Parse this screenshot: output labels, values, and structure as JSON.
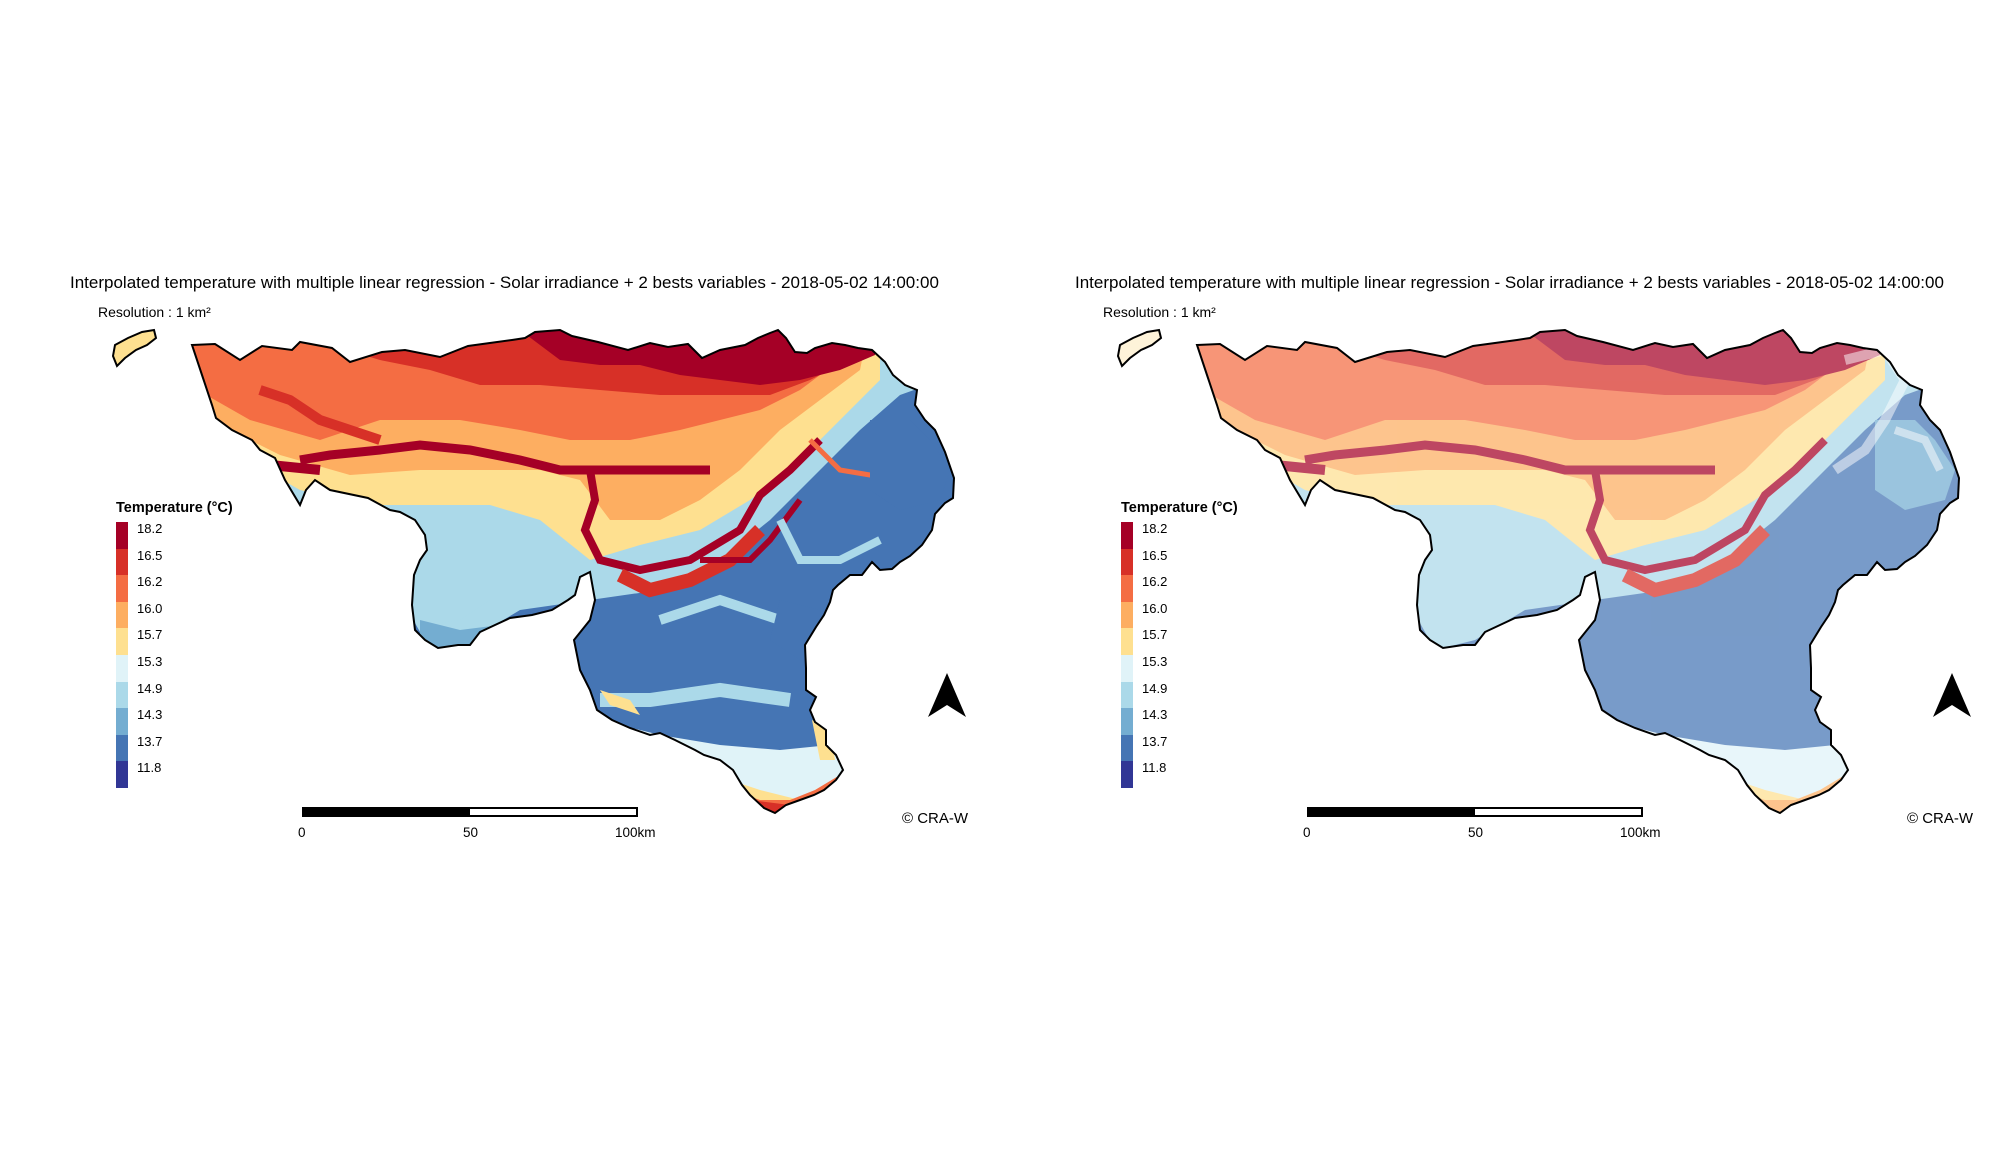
{
  "maps": [
    {
      "title": "Interpolated temperature with multiple linear regression - Solar irradiance + 2 bests variables - 2018-05-02 14:00:00",
      "resolution": "Resolution : 1 km²",
      "style": "flat",
      "legend": {
        "title": "Temperature (°C)",
        "items": [
          {
            "label": "18.2",
            "color": "#a50026"
          },
          {
            "label": "16.5",
            "color": "#d73027"
          },
          {
            "label": "16.2",
            "color": "#f46d43"
          },
          {
            "label": "16.0",
            "color": "#fdae61"
          },
          {
            "label": "15.7",
            "color": "#fee090"
          },
          {
            "label": "15.3",
            "color": "#e0f3f8"
          },
          {
            "label": "14.9",
            "color": "#abd9e9"
          },
          {
            "label": "14.3",
            "color": "#74add1"
          },
          {
            "label": "13.7",
            "color": "#4575b4"
          },
          {
            "label": "11.8",
            "color": "#313695"
          }
        ]
      },
      "scale": {
        "labels": [
          "0",
          "50",
          "100km"
        ]
      },
      "copyright": "© CRA-W"
    },
    {
      "title": "Interpolated temperature with multiple linear regression - Solar irradiance + 2 bests variables - 2018-05-02 14:00:00",
      "resolution": "Resolution : 1 km²",
      "style": "hillshade",
      "legend": {
        "title": "Temperature (°C)",
        "items": [
          {
            "label": "18.2",
            "color": "#a50026"
          },
          {
            "label": "16.5",
            "color": "#d73027"
          },
          {
            "label": "16.2",
            "color": "#f46d43"
          },
          {
            "label": "16.0",
            "color": "#fdae61"
          },
          {
            "label": "15.7",
            "color": "#fee090"
          },
          {
            "label": "15.3",
            "color": "#e0f3f8"
          },
          {
            "label": "14.9",
            "color": "#abd9e9"
          },
          {
            "label": "14.3",
            "color": "#74add1"
          },
          {
            "label": "13.7",
            "color": "#4575b4"
          },
          {
            "label": "11.8",
            "color": "#313695"
          }
        ]
      },
      "scale": {
        "labels": [
          "0",
          "50",
          "100km"
        ]
      },
      "copyright": "© CRA-W"
    }
  ]
}
